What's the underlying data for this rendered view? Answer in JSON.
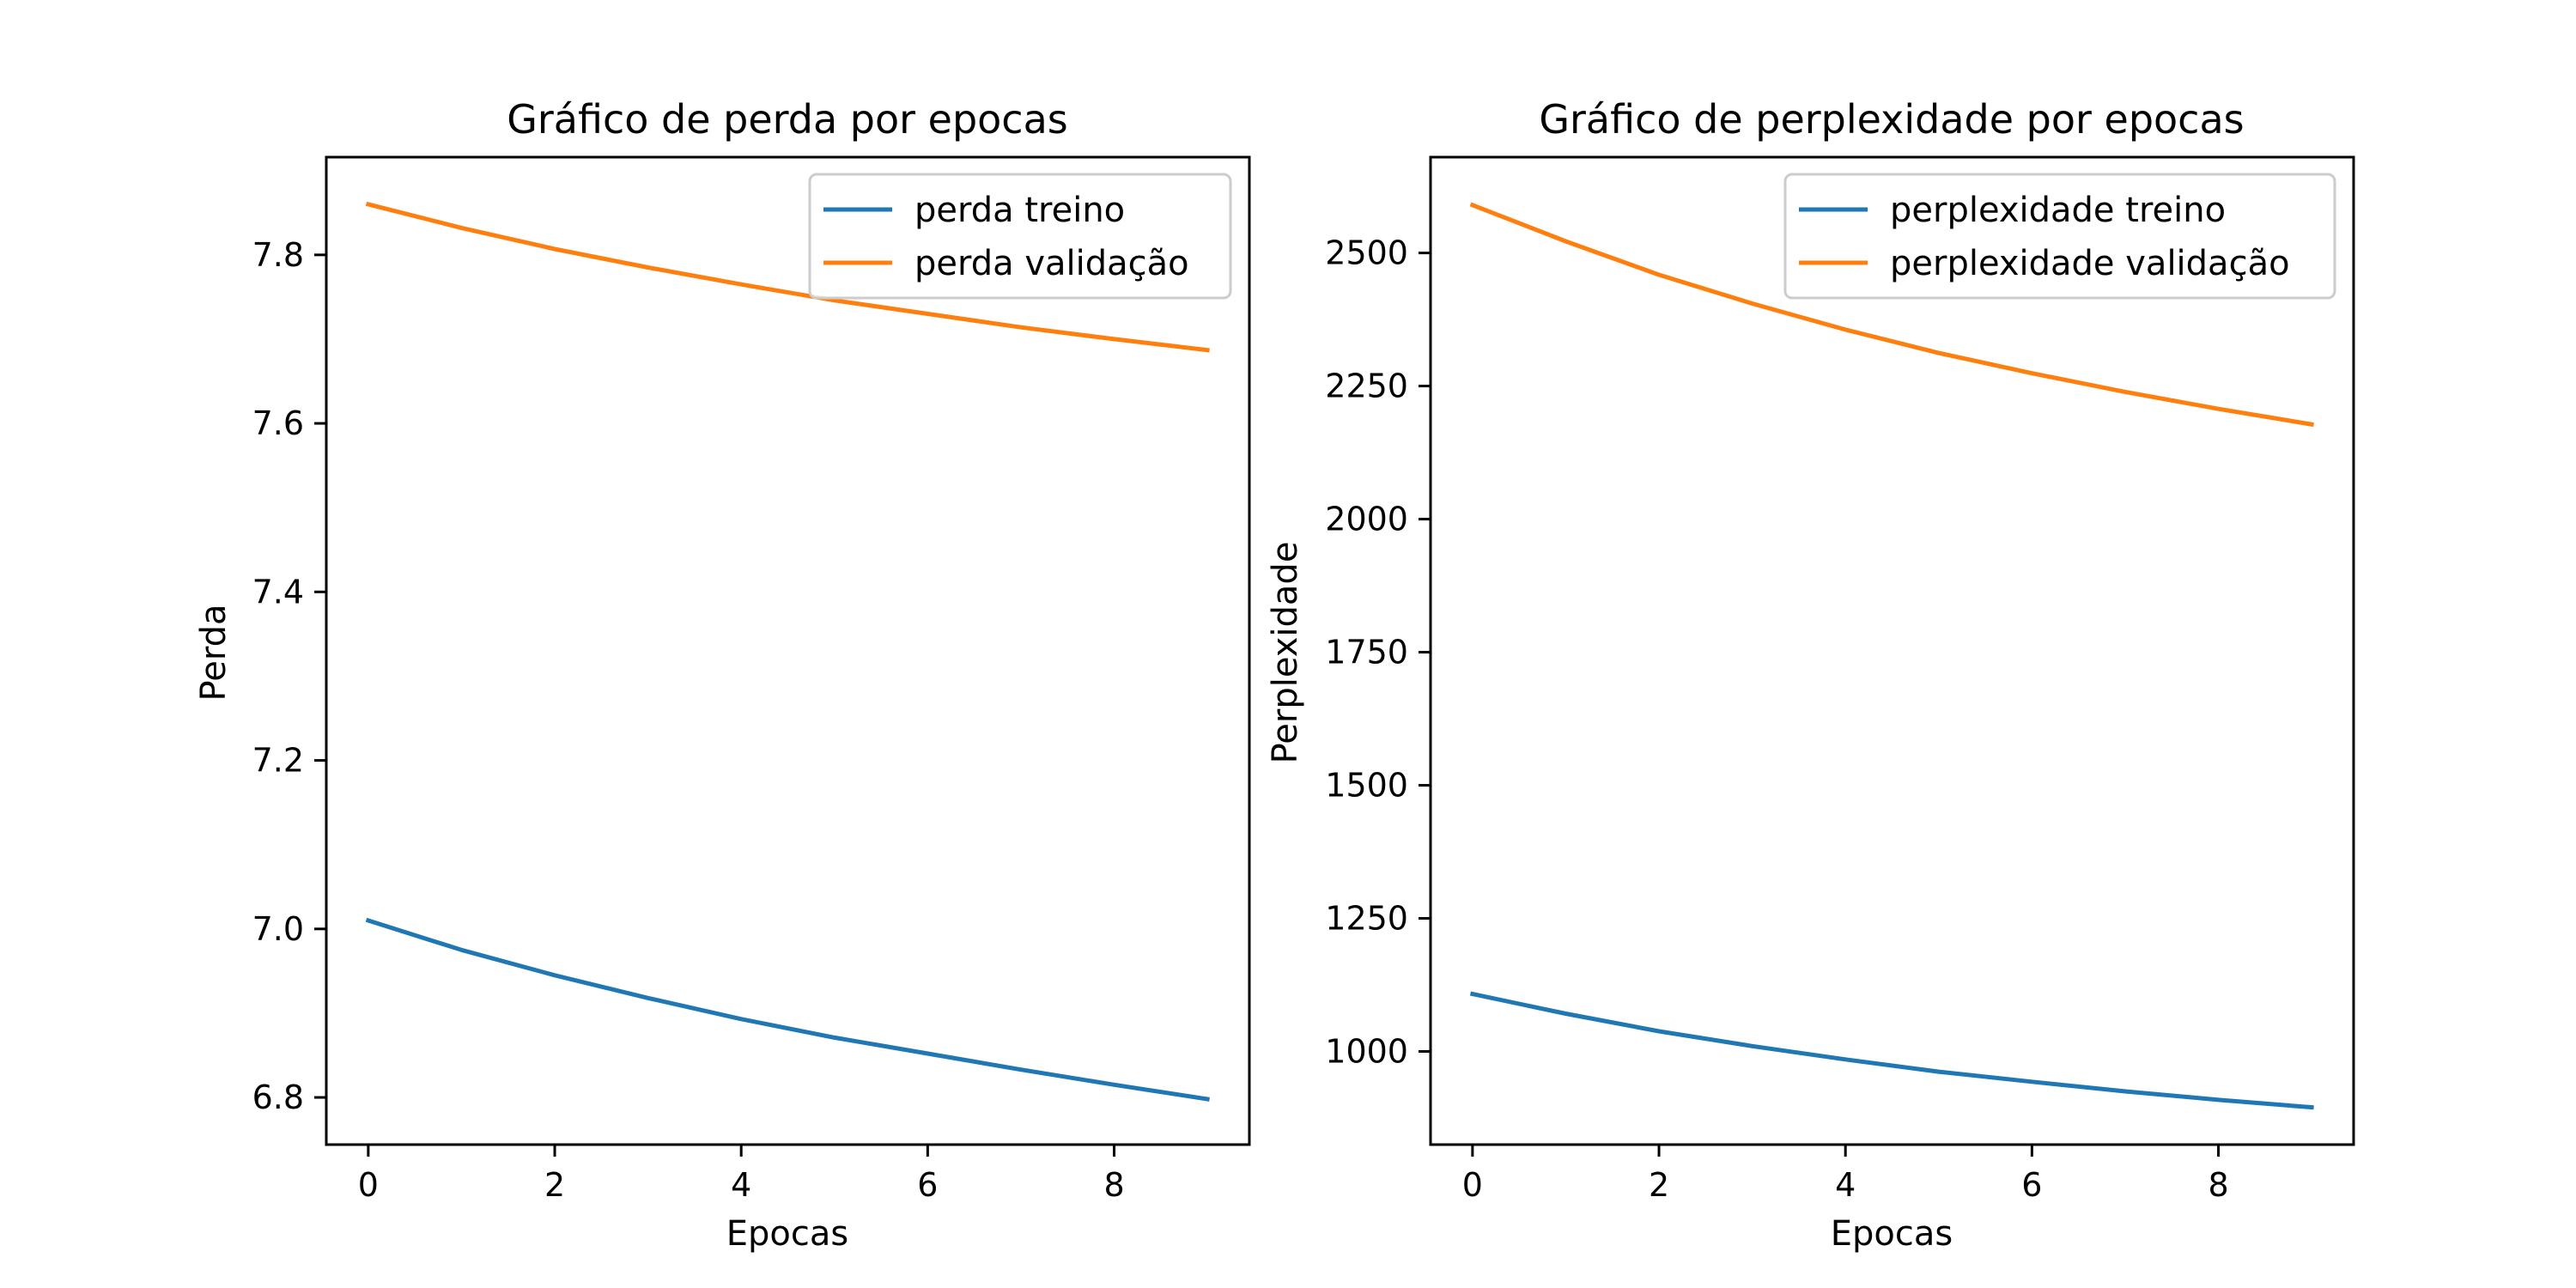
{
  "chart_data": [
    {
      "type": "line",
      "title": "Gráfico de perda por epocas",
      "xlabel": "Epocas",
      "ylabel": "Perda",
      "x": [
        0,
        1,
        2,
        3,
        4,
        5,
        6,
        7,
        8,
        9
      ],
      "xlim": [
        -0.45,
        9.45
      ],
      "ylim": [
        6.744,
        7.916
      ],
      "xticks": [
        0,
        2,
        4,
        6,
        8
      ],
      "yticks": [
        6.8,
        7.0,
        7.2,
        7.4,
        7.6,
        7.8
      ],
      "xtick_labels": [
        "0",
        "2",
        "4",
        "6",
        "8"
      ],
      "ytick_labels": [
        "6.8",
        "7.0",
        "7.2",
        "7.4",
        "7.6",
        "7.8"
      ],
      "grid": false,
      "legend_position": "top-right",
      "series": [
        {
          "name": "perda treino",
          "color": "#1f77b4",
          "values": [
            7.01,
            6.975,
            6.945,
            6.918,
            6.893,
            6.871,
            6.852,
            6.833,
            6.815,
            6.798
          ]
        },
        {
          "name": "perda validação",
          "color": "#ff7f0e",
          "values": [
            7.86,
            7.832,
            7.807,
            7.785,
            7.765,
            7.746,
            7.73,
            7.714,
            7.7,
            7.687
          ]
        }
      ]
    },
    {
      "type": "line",
      "title": "Gráfico de perplexidade por epocas",
      "xlabel": "Epocas",
      "ylabel": "Perplexidade",
      "x": [
        0,
        1,
        2,
        3,
        4,
        5,
        6,
        7,
        8,
        9
      ],
      "xlim": [
        -0.45,
        9.45
      ],
      "ylim": [
        825,
        2680
      ],
      "xticks": [
        0,
        2,
        4,
        6,
        8
      ],
      "yticks": [
        1000,
        1250,
        1500,
        1750,
        2000,
        2250,
        2500
      ],
      "xtick_labels": [
        "0",
        "2",
        "4",
        "6",
        "8"
      ],
      "ytick_labels": [
        "1000",
        "1250",
        "1500",
        "1750",
        "2000",
        "2250",
        "2500"
      ],
      "grid": false,
      "legend_position": "top-right",
      "series": [
        {
          "name": "perplexidade treino",
          "color": "#1f77b4",
          "values": [
            1108,
            1071,
            1038,
            1010,
            985,
            962,
            943,
            925,
            909,
            895
          ]
        },
        {
          "name": "perplexidade validação",
          "color": "#ff7f0e",
          "values": [
            2590,
            2522,
            2459,
            2405,
            2356,
            2312,
            2274,
            2239,
            2207,
            2178
          ]
        }
      ]
    }
  ]
}
